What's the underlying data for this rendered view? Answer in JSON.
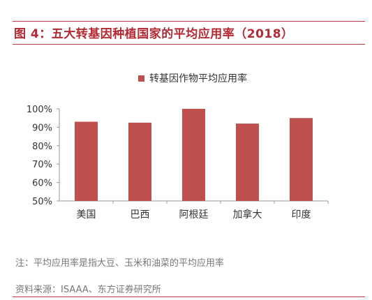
{
  "title": "图 4：五大转基因种植国家的平均应用率（2018）",
  "note": "注：平均应用率是指大豆、玉米和油菜的平均应用率",
  "source": "资料来源：ISAAA、东方证券研究所",
  "colors": {
    "bar": "#c0504d",
    "accent": "#b22a33",
    "rule": "#b73a40",
    "text": "#333333",
    "muted": "#777777"
  },
  "chart_data": {
    "type": "bar",
    "title": "",
    "xlabel": "",
    "ylabel": "",
    "categories": [
      "美国",
      "巴西",
      "阿根廷",
      "加拿大",
      "印度"
    ],
    "series": [
      {
        "name": "转基因作物平均应用率",
        "values": [
          93,
          92.5,
          100,
          92,
          95
        ]
      }
    ],
    "ylim": [
      50,
      100
    ],
    "yticks": [
      "50%",
      "60%",
      "70%",
      "80%",
      "90%",
      "100%"
    ],
    "legend_position": "top-center",
    "grid": false
  }
}
